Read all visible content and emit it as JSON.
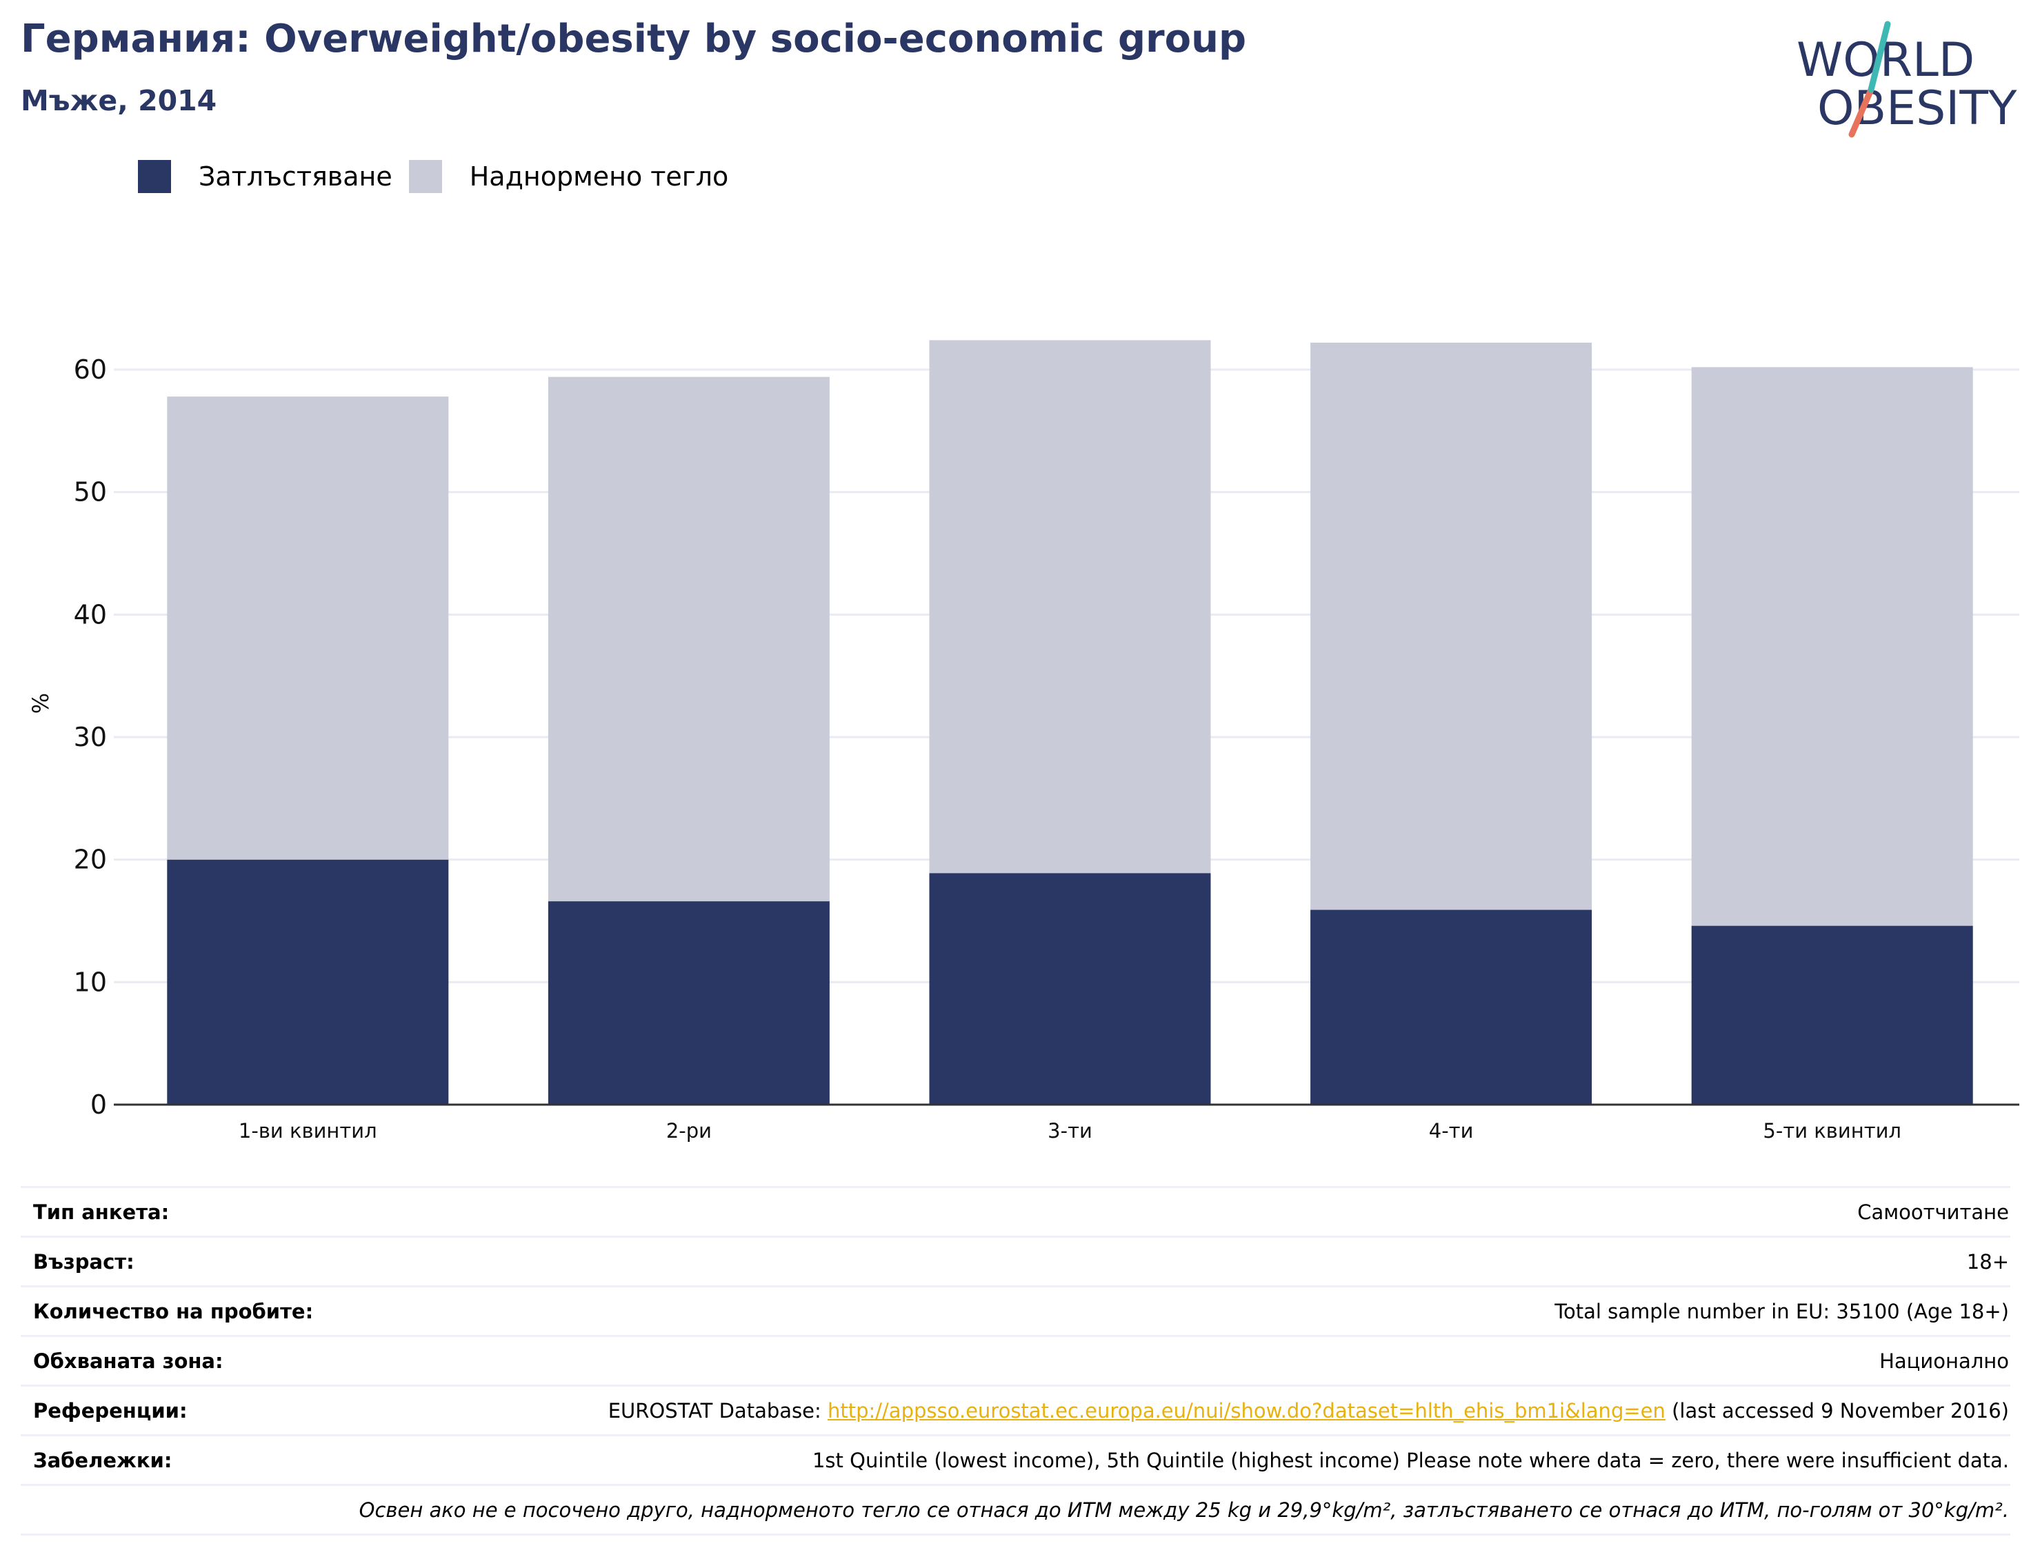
{
  "header": {
    "title": "Германия: Overweight/obesity by socio-economic group",
    "subtitle": "Мъже, 2014"
  },
  "logo": {
    "line1": "WORLD",
    "line2": "OBESITY"
  },
  "colors": {
    "obesity": "#2a3664",
    "overweight": "#c9ccd8",
    "title": "#2a3664",
    "link": "#e8b10e",
    "logo_teal": "#3fb8b3",
    "logo_coral": "#e8735c"
  },
  "chart_data": {
    "type": "bar",
    "stacked": true,
    "categories": [
      "1-ви квинтил",
      "2-ри",
      "3-ти",
      "4-ти",
      "5-ти квинтил"
    ],
    "series": [
      {
        "name": "Затлъстяване",
        "values": [
          20.0,
          16.6,
          18.9,
          15.9,
          14.6
        ]
      },
      {
        "name": "Наднормено тегло",
        "values": [
          37.8,
          42.8,
          43.5,
          46.3,
          45.6
        ]
      }
    ],
    "ylabel": "%",
    "ylim": [
      0,
      62.5
    ],
    "yticks": [
      0,
      10,
      20,
      30,
      40,
      50,
      60
    ],
    "grid": true,
    "legend_position": "top-left"
  },
  "info": {
    "survey_type": {
      "label": "Тип анкета:",
      "value": "Самоотчитане"
    },
    "age": {
      "label": "Възраст:",
      "value": "18+"
    },
    "sample": {
      "label": "Количество на пробите:",
      "value": "Total sample number in EU: 35100 (Age 18+)"
    },
    "area": {
      "label": "Обхваната зона:",
      "value": "Национално"
    },
    "references": {
      "label": "Референции:",
      "prefix": "EUROSTAT Database: ",
      "link": "http://appsso.eurostat.ec.europa.eu/nui/show.do?dataset=hlth_ehis_bm1i&lang=en",
      "suffix": " (last accessed 9 November 2016)"
    },
    "notes": {
      "label": "Забележки:",
      "value": "1st Quintile (lowest income), 5th Quintile (highest income) Please note where data = zero, there were insufficient data."
    },
    "footnote": "Освен ако не е посочено друго, наднорменото тегло се отнася до ИТМ между 25 kg и 29,9°kg/m², затлъстяването се отнася до ИТМ, по-голям от 30°kg/m²."
  }
}
